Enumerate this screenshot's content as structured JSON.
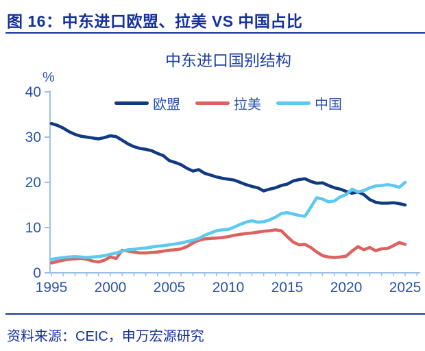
{
  "header": {
    "title": "图 16：中东进口欧盟、拉美 VS 中国占比"
  },
  "footer": {
    "source": "资料来源：CEIC，申万宏源研究"
  },
  "colors": {
    "header_navy": "#14319c",
    "chart_title_blue": "#1d3fa3",
    "axis_text_blue": "#2a52ac",
    "axis_line_blue": "#9cc0e8",
    "eu_line": "#123a80",
    "latam_line": "#dc625f",
    "china_line": "#5cc9f0"
  },
  "chart_data": {
    "type": "line",
    "title": "中东进口国别结构",
    "ylabel": "%",
    "grid": false,
    "legend_position": "top-center",
    "x_axis": {
      "min": 1995,
      "max": 2026,
      "major_tick_interval": 5,
      "minor_tick_interval": 1,
      "tick_labels": [
        "1995",
        "2000",
        "2005",
        "2010",
        "2015",
        "2020",
        "2025"
      ]
    },
    "y_axis": {
      "min": 0,
      "max": 40,
      "tick_interval": 10,
      "tick_labels": [
        "0",
        "10",
        "20",
        "30",
        "40"
      ]
    },
    "series": [
      {
        "id": "eu",
        "name": "欧盟",
        "color": "#123a80",
        "x_start": 1995,
        "x_step": 0.5,
        "values": [
          33.0,
          32.6,
          32.0,
          31.2,
          30.6,
          30.2,
          30.0,
          29.8,
          29.6,
          29.9,
          30.3,
          30.1,
          29.3,
          28.5,
          27.9,
          27.5,
          27.3,
          27.0,
          26.4,
          25.9,
          24.8,
          24.4,
          23.9,
          23.1,
          22.5,
          22.8,
          22.0,
          21.6,
          21.2,
          20.9,
          20.7,
          20.5,
          20.0,
          19.5,
          19.1,
          18.8,
          18.1,
          18.5,
          18.8,
          19.3,
          19.6,
          20.3,
          20.6,
          20.8,
          20.2,
          19.8,
          19.9,
          19.3,
          18.8,
          18.5,
          18.0,
          17.6,
          17.9,
          17.3,
          16.2,
          15.6,
          15.4,
          15.4,
          15.5,
          15.3,
          15.0
        ]
      },
      {
        "id": "latam",
        "name": "拉美",
        "color": "#dc625f",
        "x_start": 1995,
        "x_step": 0.5,
        "values": [
          2.2,
          2.5,
          2.8,
          3.0,
          3.1,
          3.2,
          3.0,
          2.6,
          2.4,
          2.8,
          3.5,
          3.2,
          5.0,
          4.8,
          4.6,
          4.4,
          4.4,
          4.5,
          4.6,
          4.8,
          5.0,
          5.1,
          5.3,
          5.8,
          6.6,
          7.2,
          7.5,
          7.6,
          7.7,
          7.8,
          8.0,
          8.3,
          8.5,
          8.7,
          8.8,
          9.0,
          9.2,
          9.3,
          9.5,
          9.3,
          8.0,
          6.8,
          6.2,
          6.3,
          5.6,
          4.6,
          3.8,
          3.5,
          3.4,
          3.5,
          3.7,
          4.8,
          5.8,
          5.1,
          5.6,
          4.9,
          5.3,
          5.4,
          6.0,
          6.7,
          6.3
        ]
      },
      {
        "id": "china",
        "name": "中国",
        "color": "#5cc9f0",
        "x_start": 1995,
        "x_step": 0.5,
        "values": [
          3.0,
          3.2,
          3.4,
          3.5,
          3.6,
          3.5,
          3.4,
          3.5,
          3.6,
          3.8,
          4.1,
          4.4,
          4.8,
          5.1,
          5.2,
          5.4,
          5.5,
          5.7,
          5.9,
          6.0,
          6.2,
          6.4,
          6.6,
          6.9,
          7.2,
          7.6,
          8.3,
          8.8,
          9.3,
          9.5,
          9.6,
          10.1,
          10.7,
          11.2,
          11.5,
          11.2,
          11.3,
          11.7,
          12.3,
          13.1,
          13.3,
          13.0,
          12.7,
          12.5,
          14.5,
          16.6,
          16.3,
          15.7,
          15.9,
          16.8,
          17.3,
          18.5,
          17.9,
          18.2,
          18.8,
          19.2,
          19.3,
          19.5,
          19.3,
          18.9,
          20.0
        ]
      }
    ]
  }
}
